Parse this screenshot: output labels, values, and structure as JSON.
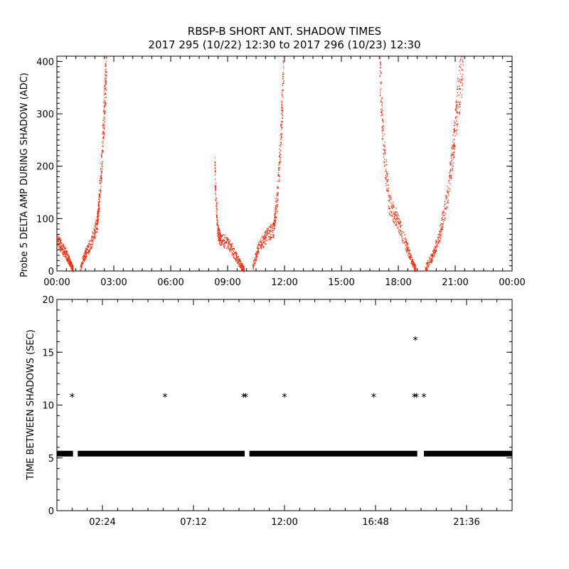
{
  "title": {
    "line1": "RBSP-B SHORT ANT. SHADOW TIMES",
    "line2": "2017 295 (10/22) 12:30 to 2017 296 (10/23) 12:30"
  },
  "colors": {
    "data_red": "#ff2200",
    "axis": "#000000",
    "background": "#ffffff"
  },
  "chart_data": [
    {
      "type": "scatter",
      "ylabel": "Probe 5 DELTA AMP DURING SHADOW (ADC)",
      "xlabel": "",
      "x_unit": "hours",
      "xlim": [
        0,
        24
      ],
      "ylim": [
        0,
        410
      ],
      "x_ticks": [
        0,
        3,
        6,
        9,
        12,
        15,
        18,
        21,
        24
      ],
      "x_tick_labels": [
        "00:00",
        "03:00",
        "06:00",
        "09:00",
        "12:00",
        "15:00",
        "18:00",
        "21:00",
        "00:00"
      ],
      "y_ticks": [
        0,
        100,
        200,
        300,
        400
      ],
      "y_tick_labels": [
        "0",
        "100",
        "200",
        "300",
        "400"
      ],
      "marker": "dot",
      "color": "#ff2200",
      "series": [
        {
          "segments": [
            {
              "x": [
                0.0,
                0.25,
                0.5,
                0.7,
                0.85
              ],
              "y": [
                60,
                45,
                30,
                15,
                2
              ]
            },
            {
              "x": [
                1.2,
                1.5,
                1.8,
                2.1,
                2.2,
                2.35,
                2.5,
                2.6
              ],
              "y": [
                5,
                35,
                55,
                90,
                130,
                210,
                330,
                400
              ]
            },
            {
              "x": [
                8.3,
                8.45,
                8.6,
                9.0,
                9.4,
                9.7,
                9.85
              ],
              "y": [
                200,
                80,
                60,
                55,
                30,
                10,
                3
              ]
            },
            {
              "x": [
                10.3,
                10.6,
                11.0,
                11.4,
                11.6,
                11.8,
                11.95
              ],
              "y": [
                5,
                45,
                65,
                80,
                140,
                260,
                400
              ]
            },
            {
              "x": [
                17.0,
                17.2,
                17.5,
                17.9,
                18.4,
                18.7,
                18.9
              ],
              "y": [
                400,
                240,
                130,
                100,
                50,
                20,
                4
              ]
            },
            {
              "x": [
                19.4,
                19.8,
                20.2,
                20.6,
                20.9,
                21.1,
                21.4
              ],
              "y": [
                5,
                30,
                75,
                150,
                240,
                320,
                400
              ]
            }
          ]
        }
      ]
    },
    {
      "type": "scatter",
      "ylabel": "TIME BETWEEN SHADOWS (SEC)",
      "xlabel": "",
      "x_unit": "hours",
      "xlim": [
        0,
        24
      ],
      "ylim": [
        0,
        20
      ],
      "x_ticks": [
        2.4,
        7.2,
        12.0,
        16.8,
        21.6
      ],
      "x_tick_labels": [
        "02:24",
        "07:12",
        "12:00",
        "16:48",
        "21:36"
      ],
      "y_ticks": [
        0,
        5,
        10,
        15,
        20
      ],
      "y_tick_labels": [
        "0",
        "5",
        "10",
        "15",
        "20"
      ],
      "marker": "asterisk",
      "color": "#000000",
      "series": [
        {
          "baseline_value": 5.4,
          "baseline_ranges": [
            [
              0.0,
              0.85
            ],
            [
              1.1,
              9.9
            ],
            [
              10.15,
              19.0
            ],
            [
              19.35,
              24.0
            ]
          ],
          "x": [
            0.8,
            5.7,
            9.85,
            9.95,
            12.0,
            16.7,
            18.85,
            18.95,
            19.35,
            18.9
          ],
          "y": [
            10.8,
            10.8,
            10.8,
            10.8,
            10.8,
            10.8,
            10.8,
            10.8,
            10.8,
            16.2
          ]
        }
      ]
    }
  ]
}
